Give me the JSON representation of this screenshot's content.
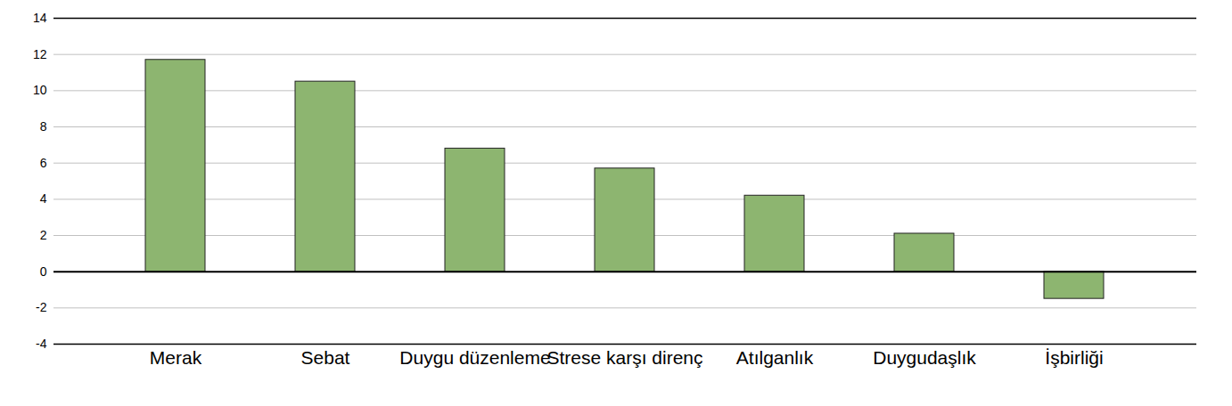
{
  "chart_data": {
    "type": "bar",
    "categories": [
      "Merak",
      "Sebat",
      "Duygu düzenleme",
      "Strese karşı direnç",
      "Atılganlık",
      "Duygudaşlık",
      "İşbirliği"
    ],
    "values": [
      11.7,
      10.5,
      6.8,
      5.7,
      4.2,
      2.1,
      -1.5
    ],
    "color": "#8db570",
    "ylim": [
      -4,
      14
    ],
    "yticks": [
      -4,
      -2,
      0,
      2,
      4,
      6,
      8,
      10,
      12,
      14
    ],
    "grid": true
  }
}
